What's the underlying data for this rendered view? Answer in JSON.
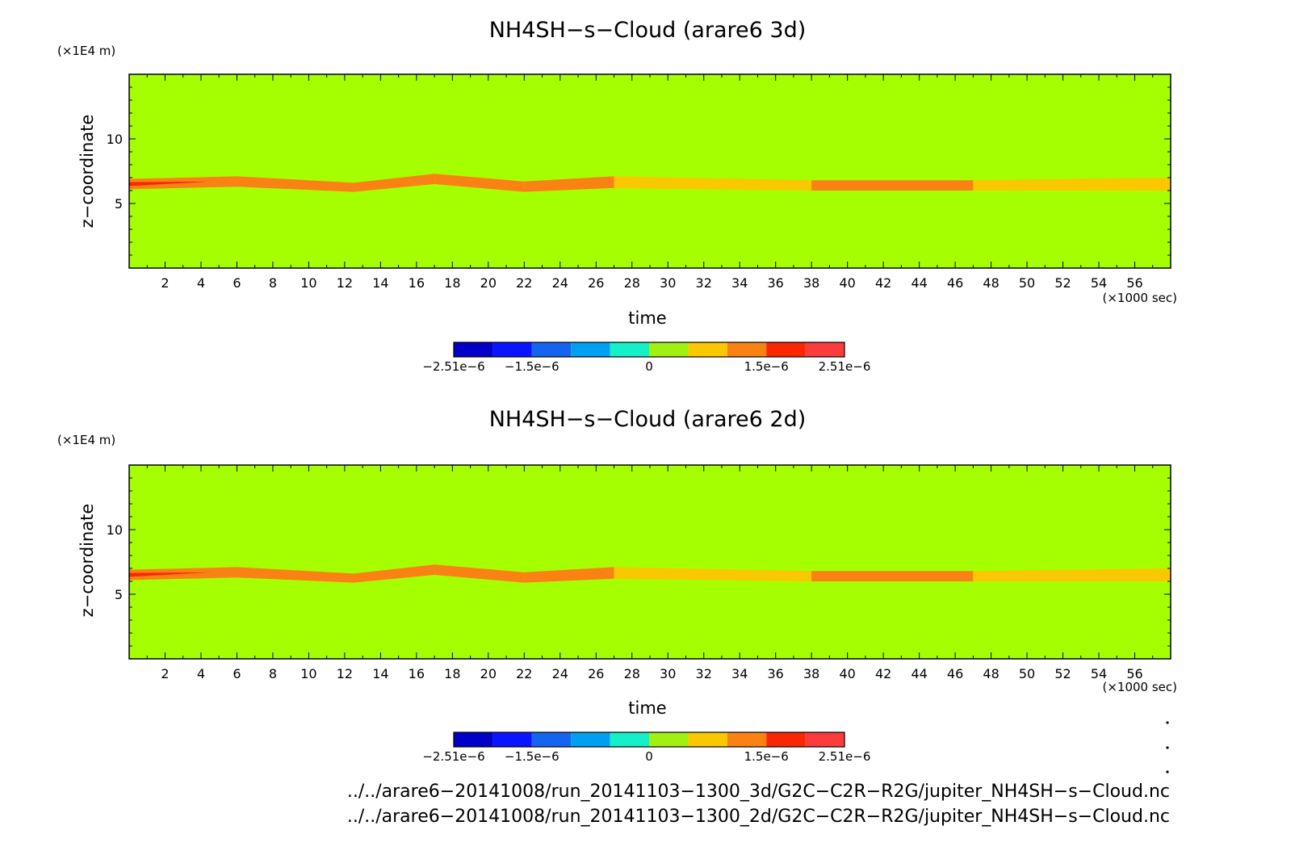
{
  "chart_data": [
    {
      "type": "heatmap",
      "title": "NH4SH−s−Cloud (arare6 3d)",
      "xlabel": "time",
      "ylabel": "z−coordinate",
      "x_unit": "(×1000 sec)",
      "y_unit": "(×1E4 m)",
      "xlim": [
        0,
        58
      ],
      "ylim": [
        0,
        15
      ],
      "x_ticks": [
        "2",
        "4",
        "6",
        "8",
        "10",
        "12",
        "14",
        "16",
        "18",
        "20",
        "22",
        "24",
        "26",
        "28",
        "30",
        "32",
        "34",
        "36",
        "38",
        "40",
        "42",
        "44",
        "46",
        "48",
        "50",
        "52",
        "54",
        "56"
      ],
      "y_ticks": [
        "5",
        "10"
      ],
      "background_level": "0 to 5e-7",
      "cloud_band": {
        "description_points": [
          {
            "x": 0,
            "y_low": 6.1,
            "y_high": 6.9,
            "level": "1.0e-6 to 1.5e-6",
            "core": true
          },
          {
            "x": 6,
            "y_low": 6.3,
            "y_high": 7.1,
            "level": "1.0e-6 to 1.5e-6"
          },
          {
            "x": 12.5,
            "y_low": 5.9,
            "y_high": 6.6,
            "level": "1.0e-6 to 1.5e-6"
          },
          {
            "x": 17,
            "y_low": 6.5,
            "y_high": 7.3,
            "level": "1.0e-6 to 1.5e-6"
          },
          {
            "x": 22,
            "y_low": 5.9,
            "y_high": 6.7,
            "level": "1.0e-6 to 1.5e-6"
          },
          {
            "x": 27,
            "y_low": 6.2,
            "y_high": 7.1,
            "level": "5e-7 to 1.0e-6"
          },
          {
            "x": 38,
            "y_low": 6.0,
            "y_high": 6.8,
            "level": "1.0e-6 to 1.5e-6"
          },
          {
            "x": 47,
            "y_low": 6.0,
            "y_high": 6.8,
            "level": "5e-7 to 1.0e-6"
          },
          {
            "x": 58,
            "y_low": 6.0,
            "y_high": 7.0,
            "level": "5e-7 to 1.0e-6"
          }
        ]
      },
      "colorbar": {
        "labels": [
          "−2.51e−6",
          "−1.5e−6",
          "0",
          "1.5e−6",
          "2.51e−6"
        ],
        "colors": [
          "#0000c8",
          "#0a14ff",
          "#1464f0",
          "#00a0f0",
          "#14f0c8",
          "#a0f014",
          "#fac800",
          "#fa8214",
          "#fa2800",
          "#fa3c3c"
        ]
      }
    },
    {
      "type": "heatmap",
      "title": "NH4SH−s−Cloud (arare6 2d)",
      "xlabel": "time",
      "ylabel": "z−coordinate",
      "x_unit": "(×1000 sec)",
      "y_unit": "(×1E4 m)",
      "xlim": [
        0,
        58
      ],
      "ylim": [
        0,
        15
      ],
      "x_ticks": [
        "2",
        "4",
        "6",
        "8",
        "10",
        "12",
        "14",
        "16",
        "18",
        "20",
        "22",
        "24",
        "26",
        "28",
        "30",
        "32",
        "34",
        "36",
        "38",
        "40",
        "42",
        "44",
        "46",
        "48",
        "50",
        "52",
        "54",
        "56"
      ],
      "y_ticks": [
        "5",
        "10"
      ],
      "background_level": "0 to 5e-7",
      "cloud_band": {
        "description_points": [
          {
            "x": 0,
            "y_low": 6.1,
            "y_high": 6.9,
            "level": "1.0e-6 to 1.5e-6",
            "core": true
          },
          {
            "x": 6,
            "y_low": 6.3,
            "y_high": 7.1,
            "level": "1.0e-6 to 1.5e-6"
          },
          {
            "x": 12.5,
            "y_low": 5.9,
            "y_high": 6.6,
            "level": "1.0e-6 to 1.5e-6"
          },
          {
            "x": 17,
            "y_low": 6.5,
            "y_high": 7.3,
            "level": "1.0e-6 to 1.5e-6"
          },
          {
            "x": 22,
            "y_low": 5.9,
            "y_high": 6.7,
            "level": "1.0e-6 to 1.5e-6"
          },
          {
            "x": 27,
            "y_low": 6.2,
            "y_high": 7.1,
            "level": "5e-7 to 1.0e-6"
          },
          {
            "x": 38,
            "y_low": 6.0,
            "y_high": 6.8,
            "level": "1.0e-6 to 1.5e-6"
          },
          {
            "x": 47,
            "y_low": 6.0,
            "y_high": 6.8,
            "level": "5e-7 to 1.0e-6"
          },
          {
            "x": 58,
            "y_low": 6.0,
            "y_high": 7.0,
            "level": "5e-7 to 1.0e-6"
          }
        ]
      },
      "colorbar": {
        "labels": [
          "−2.51e−6",
          "−1.5e−6",
          "0",
          "1.5e−6",
          "2.51e−6"
        ],
        "colors": [
          "#0000c8",
          "#0a14ff",
          "#1464f0",
          "#00a0f0",
          "#14f0c8",
          "#a0f014",
          "#fac800",
          "#fa8214",
          "#fa2800",
          "#fa3c3c"
        ]
      }
    }
  ],
  "colors": {
    "background_field": "#a5ff00",
    "band_high": "#fa8214",
    "band_low": "#fac800",
    "band_core": "#fa2800"
  },
  "footer": {
    "file_3d": "../../arare6−20141008/run_20141103−1300_3d/G2C−C2R−R2G/jupiter_NH4SH−s−Cloud.nc",
    "file_2d": "../../arare6−20141008/run_20141103−1300_2d/G2C−C2R−R2G/jupiter_NH4SH−s−Cloud.nc"
  }
}
